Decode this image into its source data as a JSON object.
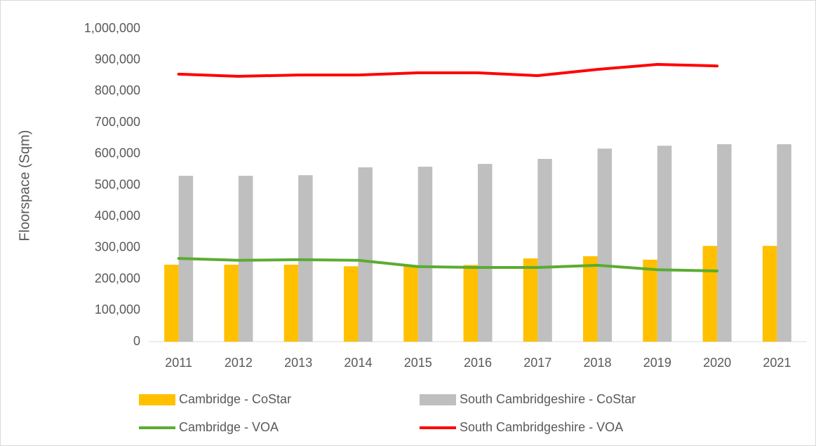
{
  "chart_data": {
    "type": "bar",
    "y_axis_label": "Floorspace (Sqm)",
    "categories": [
      "2011",
      "2012",
      "2013",
      "2014",
      "2015",
      "2016",
      "2017",
      "2018",
      "2019",
      "2020",
      "2021"
    ],
    "series": [
      {
        "name": "Cambridge - CoStar",
        "type": "bar",
        "color": "#ffc000",
        "values": [
          246000,
          246000,
          246000,
          241000,
          245000,
          245000,
          266000,
          273000,
          262000,
          306000,
          306000
        ]
      },
      {
        "name": "South Cambridgeshire - CoStar",
        "type": "bar",
        "color": "#bfbfbf",
        "values": [
          530000,
          530000,
          532000,
          557000,
          559000,
          568000,
          584000,
          617000,
          626000,
          631000,
          631000
        ]
      },
      {
        "name": "Cambridge - VOA",
        "type": "line",
        "color": "#5aac32",
        "values": [
          266000,
          260000,
          262000,
          260000,
          240000,
          237000,
          237000,
          244000,
          230000,
          226000,
          null
        ]
      },
      {
        "name": "South Cambridgeshire - VOA",
        "type": "line",
        "color": "#ff0000",
        "values": [
          855000,
          848000,
          852000,
          852000,
          859000,
          859000,
          850000,
          870000,
          886000,
          881000,
          null
        ]
      }
    ],
    "ylim": [
      0,
      1000000
    ],
    "yticks": [
      0,
      {
        "value": 100000,
        "label": "100,000"
      },
      {
        "value": 200000,
        "label": "200,000"
      },
      {
        "value": 300000,
        "label": "300,000"
      },
      {
        "value": 400000,
        "label": "400,000"
      },
      {
        "value": 500000,
        "label": "500,000"
      },
      {
        "value": 600000,
        "label": "600,000"
      },
      {
        "value": 700000,
        "label": "700,000"
      },
      {
        "value": 800000,
        "label": "800,000"
      },
      {
        "value": 900000,
        "label": "900,000"
      },
      {
        "value": 1000000,
        "label": "1,000,000"
      }
    ],
    "grid": false
  }
}
